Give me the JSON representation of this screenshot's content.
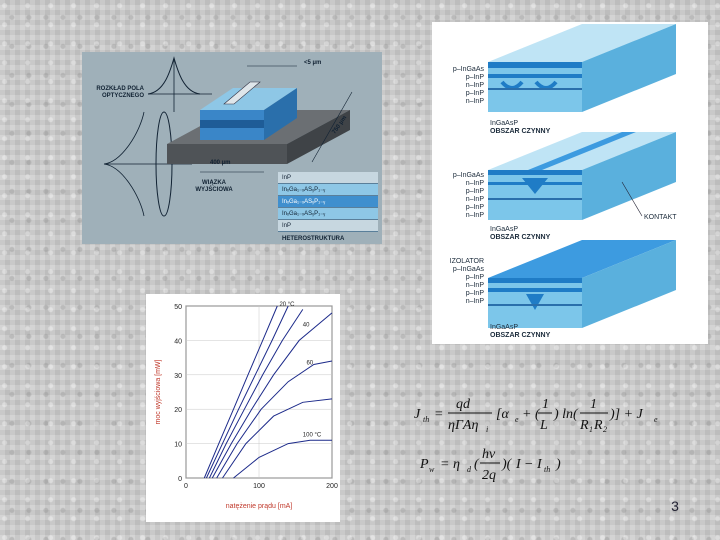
{
  "laser_figure": {
    "label_pole": "ROZKŁAD POLA OPTYCZNEGO",
    "label_wiazka": "WIĄZKA WYJŚCIOWA",
    "dim_width": "<5 µm",
    "dim_length": "750 µm",
    "dim_base": "400 µm",
    "layers": [
      "InP",
      "InₓGa₁₋ₓASᵧP₁₋ᵧ",
      "InₓGa₁₋ₓASᵧP₁₋ᵧ",
      "InₓGa₁₋ₓASᵧP₁₋ᵧ",
      "InP"
    ],
    "caption": "HETEROSTRUKTURA",
    "colors": {
      "body": "#3a86c8",
      "top": "#8ec7e6",
      "base": "#6b6f73"
    }
  },
  "structures": [
    {
      "labels": [
        "p–InGaAs",
        "p–InP",
        "n–InP",
        "p–InP",
        "n–InP"
      ],
      "active": "InGaAsP",
      "caption": "OBSZAR CZYNNY"
    },
    {
      "labels": [
        "p–InGaAs",
        "n–InP",
        "p–InP",
        "n–InP",
        "p–InP",
        "n–InP"
      ],
      "active": "InGaAsP",
      "caption": "OBSZAR CZYNNY",
      "callout": "KONTAKT"
    },
    {
      "labels": [
        "IZOLATOR",
        "p–InGaAs",
        "p–InP",
        "n–InP",
        "p–InP",
        "n–InP"
      ],
      "active": "InGaAsP",
      "caption": "OBSZAR CZYNNY"
    }
  ],
  "chart_data": {
    "type": "line",
    "title": "",
    "xlabel": "natężenie prądu [mA]",
    "ylabel": "moc wyjściowa [mW]",
    "xlim": [
      0,
      200
    ],
    "ylim": [
      0,
      50
    ],
    "xticks": [
      0,
      100,
      200
    ],
    "yticks": [
      0,
      10,
      20,
      30,
      40,
      50
    ],
    "grid": true,
    "color": "#1c2a8a",
    "annotations": [
      {
        "text": "20 °C",
        "x": 128,
        "y": 50
      },
      {
        "text": "40",
        "x": 160,
        "y": 44
      },
      {
        "text": "60",
        "x": 165,
        "y": 33
      },
      {
        "text": "100 °C",
        "x": 160,
        "y": 12
      }
    ],
    "series": [
      {
        "points": [
          [
            25,
            0
          ],
          [
            45,
            10
          ],
          [
            65,
            20
          ],
          [
            85,
            30
          ],
          [
            105,
            40
          ],
          [
            125,
            50
          ]
        ]
      },
      {
        "points": [
          [
            28,
            0
          ],
          [
            50,
            10
          ],
          [
            72,
            20
          ],
          [
            95,
            30
          ],
          [
            118,
            40
          ],
          [
            140,
            50
          ]
        ]
      },
      {
        "points": [
          [
            32,
            0
          ],
          [
            55,
            10
          ],
          [
            80,
            20
          ],
          [
            105,
            30
          ],
          [
            132,
            40
          ],
          [
            160,
            49
          ]
        ]
      },
      {
        "points": [
          [
            36,
            0
          ],
          [
            62,
            10
          ],
          [
            90,
            20
          ],
          [
            120,
            30
          ],
          [
            155,
            40
          ],
          [
            200,
            48
          ]
        ]
      },
      {
        "points": [
          [
            42,
            0
          ],
          [
            70,
            10
          ],
          [
            103,
            20
          ],
          [
            140,
            28
          ],
          [
            175,
            33
          ],
          [
            200,
            34
          ]
        ]
      },
      {
        "points": [
          [
            50,
            0
          ],
          [
            82,
            10
          ],
          [
            120,
            18
          ],
          [
            160,
            22
          ],
          [
            200,
            23
          ]
        ]
      },
      {
        "points": [
          [
            65,
            0
          ],
          [
            100,
            6
          ],
          [
            140,
            10
          ],
          [
            170,
            11
          ],
          [
            200,
            11
          ]
        ]
      }
    ]
  },
  "formulas": {
    "threshold": "J_th = (qd / ηΓAη_i) [α_e + (1/L) ln(1/(R₁R₂))] + J_e",
    "power": "P_w = η_d (hν / 2q) (I − I_th)"
  },
  "page": {
    "number": "3"
  }
}
